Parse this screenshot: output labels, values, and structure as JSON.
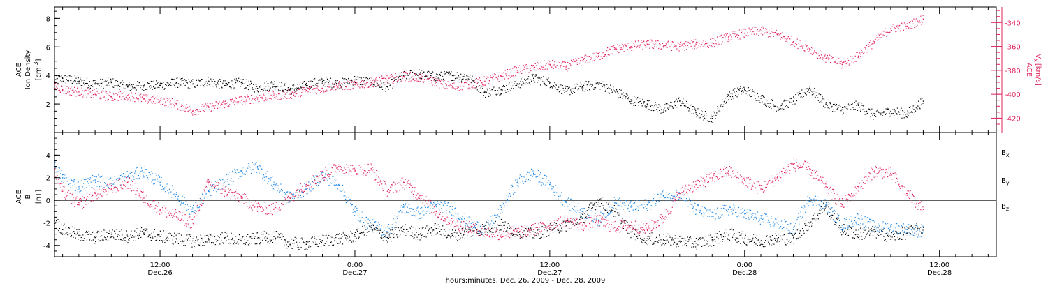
{
  "chart_data": {
    "type": "scatter",
    "xlabel": "hours:minutes, Dec. 26, 2009 - Dec. 28, 2009",
    "x_range_hours": [
      5.5,
      63.5
    ],
    "x_ticks": [
      {
        "hour": 12,
        "time": "12:00",
        "date": "Dec.26"
      },
      {
        "hour": 24,
        "time": "0:00",
        "date": "Dec.27"
      },
      {
        "hour": 36,
        "time": "12:00",
        "date": "Dec.27"
      },
      {
        "hour": 48,
        "time": "0:00",
        "date": "Dec.28"
      },
      {
        "hour": 60,
        "time": "12:00",
        "date": "Dec.28"
      }
    ],
    "panels": [
      {
        "id": "density-speed",
        "left_axis": {
          "label_line1": "ACE",
          "label_line2": "Ion Density",
          "unit": "[cm",
          "unit_sup": "-3",
          "unit_end": "]",
          "ylim": [
            0,
            8.8
          ],
          "ticks": [
            2,
            4,
            6,
            8
          ]
        },
        "right_axis": {
          "label_line1": "ACE",
          "label_var": "V",
          "label_sub": "x",
          "unit": "[km/s]",
          "ylim": [
            -432,
            -327
          ],
          "ticks": [
            -420,
            -400,
            -380,
            -360,
            -340
          ],
          "color": "#e0245e"
        },
        "series": [
          {
            "axis": "left",
            "color": "#000000",
            "x": [
              5.5,
              6,
              7,
              8,
              9,
              10,
              11,
              12,
              13,
              14,
              15,
              16,
              17,
              18,
              19,
              20,
              21,
              22,
              23,
              24,
              25,
              26,
              27,
              28,
              29,
              30,
              31,
              32,
              33,
              34,
              35,
              36,
              37,
              38,
              39,
              40,
              41,
              42,
              43,
              44,
              45,
              46,
              47,
              48,
              49,
              50,
              51,
              52,
              53,
              54,
              55,
              56,
              57,
              58,
              59
            ],
            "y": [
              3.6,
              3.8,
              3.6,
              3.4,
              3.5,
              3.2,
              3.3,
              3.3,
              3.5,
              3.4,
              3.6,
              3.3,
              3.5,
              3.1,
              3.4,
              3.0,
              3.3,
              3.6,
              3.4,
              3.7,
              3.5,
              3.2,
              4.0,
              4.1,
              3.9,
              4.0,
              3.9,
              2.8,
              3.0,
              3.4,
              3.8,
              3.5,
              2.9,
              3.2,
              3.4,
              2.9,
              2.3,
              2.0,
              1.6,
              2.2,
              1.4,
              1.0,
              2.6,
              3.0,
              2.4,
              1.8,
              2.2,
              3.1,
              2.0,
              1.6,
              1.9,
              1.2,
              1.5,
              1.3,
              2.2
            ]
          },
          {
            "axis": "right",
            "color": "#e0245e",
            "x": [
              5.5,
              6,
              7,
              8,
              9,
              10,
              11,
              12,
              13,
              14,
              15,
              16,
              17,
              18,
              19,
              20,
              21,
              22,
              23,
              24,
              25,
              26,
              27,
              28,
              29,
              30,
              31,
              32,
              33,
              34,
              35,
              36,
              37,
              38,
              39,
              40,
              41,
              42,
              43,
              44,
              45,
              46,
              47,
              48,
              49,
              50,
              51,
              52,
              53,
              54,
              55,
              56,
              57,
              58,
              59
            ],
            "y": [
              -392,
              -396,
              -398,
              -400,
              -402,
              -401,
              -404,
              -405,
              -408,
              -414,
              -411,
              -408,
              -405,
              -403,
              -401,
              -400,
              -397,
              -395,
              -393,
              -392,
              -390,
              -388,
              -385,
              -386,
              -390,
              -394,
              -392,
              -389,
              -385,
              -380,
              -378,
              -375,
              -377,
              -372,
              -368,
              -362,
              -360,
              -358,
              -359,
              -360,
              -358,
              -357,
              -352,
              -349,
              -347,
              -350,
              -356,
              -362,
              -370,
              -375,
              -368,
              -356,
              -345,
              -343,
              -337
            ]
          }
        ]
      },
      {
        "id": "magnetic-field",
        "left_axis": {
          "label_line1": "ACE",
          "label_var": "B",
          "unit": "[nT]",
          "ylim": [
            -5,
            6
          ],
          "ticks": [
            -4,
            -2,
            0,
            2,
            4
          ],
          "zero_line": true
        },
        "legend": [
          {
            "name_main": "B",
            "name_sub": "x",
            "color": "#000000"
          },
          {
            "name_main": "B",
            "name_sub": "y",
            "color": "#1e88e5"
          },
          {
            "name_main": "B",
            "name_sub": "z",
            "color": "#e0245e"
          }
        ],
        "series": [
          {
            "color": "#000000",
            "x": [
              5.5,
              6,
              7,
              8,
              9,
              10,
              11,
              12,
              13,
              14,
              15,
              16,
              17,
              18,
              19,
              20,
              21,
              22,
              23,
              24,
              25,
              26,
              27,
              28,
              29,
              30,
              31,
              32,
              33,
              34,
              35,
              36,
              37,
              38,
              39,
              40,
              41,
              42,
              43,
              44,
              45,
              46,
              47,
              48,
              49,
              50,
              51,
              52,
              53,
              54,
              55,
              56,
              57,
              58,
              59
            ],
            "y": [
              -1.8,
              -2.6,
              -3.1,
              -3.3,
              -3.0,
              -3.2,
              -2.9,
              -3.2,
              -3.4,
              -3.6,
              -3.5,
              -3.3,
              -3.6,
              -3.4,
              -3.2,
              -3.8,
              -3.9,
              -3.6,
              -3.4,
              -3.2,
              -2.4,
              -3.3,
              -2.6,
              -3.0,
              -2.5,
              -3.1,
              -2.8,
              -2.5,
              -2.2,
              -2.8,
              -3.0,
              -2.6,
              -2.2,
              -1.6,
              0.0,
              -1.0,
              -2.8,
              -3.4,
              -3.5,
              -3.6,
              -3.8,
              -3.5,
              -3.0,
              -3.4,
              -3.6,
              -3.4,
              -3.4,
              -2.0,
              -0.5,
              -2.6,
              -3.0,
              -2.8,
              -3.2,
              -2.9,
              -2.4
            ]
          },
          {
            "color": "#1e88e5",
            "x": [
              5.5,
              6,
              7,
              8,
              9,
              10,
              11,
              12,
              13,
              14,
              15,
              16,
              17,
              18,
              19,
              20,
              21,
              22,
              23,
              24,
              25,
              26,
              27,
              28,
              29,
              30,
              31,
              32,
              33,
              34,
              35,
              36,
              37,
              38,
              39,
              40,
              41,
              42,
              43,
              44,
              45,
              46,
              47,
              48,
              49,
              50,
              51,
              52,
              53,
              54,
              55,
              56,
              57,
              58,
              59
            ],
            "y": [
              3.0,
              2.0,
              1.2,
              1.8,
              1.5,
              2.1,
              2.5,
              1.6,
              0.5,
              -1.0,
              0.8,
              1.7,
              2.6,
              3.0,
              1.4,
              0.2,
              1.0,
              2.2,
              1.4,
              -1.0,
              -2.2,
              -2.8,
              -0.6,
              -1.2,
              -0.4,
              -0.8,
              -2.0,
              -2.6,
              -0.8,
              1.6,
              2.4,
              1.4,
              -0.2,
              -1.0,
              -1.8,
              -0.2,
              -0.6,
              -0.4,
              0.4,
              0.6,
              -0.8,
              -1.4,
              -0.8,
              -1.2,
              -1.6,
              -2.0,
              -2.6,
              0.2,
              -0.4,
              -2.2,
              -1.6,
              -2.4,
              -2.4,
              -2.6,
              -2.8
            ]
          },
          {
            "color": "#e0245e",
            "x": [
              5.5,
              6,
              7,
              8,
              9,
              10,
              11,
              12,
              13,
              14,
              15,
              16,
              17,
              18,
              19,
              20,
              21,
              22,
              23,
              24,
              25,
              26,
              27,
              28,
              29,
              30,
              31,
              32,
              33,
              34,
              35,
              36,
              37,
              38,
              39,
              40,
              41,
              42,
              43,
              44,
              45,
              46,
              47,
              48,
              49,
              50,
              51,
              52,
              53,
              54,
              55,
              56,
              57,
              58,
              59
            ],
            "y": [
              2.5,
              0.8,
              -0.4,
              0.6,
              1.0,
              1.6,
              0.2,
              -0.8,
              -1.4,
              -2.0,
              1.6,
              0.8,
              0.2,
              -0.6,
              -0.8,
              0.2,
              1.4,
              2.2,
              3.0,
              2.6,
              2.8,
              0.8,
              1.6,
              0.4,
              -1.0,
              -2.0,
              -2.4,
              -2.8,
              -3.0,
              -2.8,
              -2.6,
              -2.2,
              -1.8,
              -2.2,
              -1.8,
              -2.4,
              -2.2,
              -2.6,
              -1.6,
              0.6,
              1.4,
              2.0,
              2.6,
              1.8,
              1.0,
              2.0,
              3.2,
              2.8,
              1.2,
              -0.4,
              1.2,
              2.6,
              2.4,
              0.6,
              -0.8
            ]
          }
        ]
      }
    ]
  }
}
